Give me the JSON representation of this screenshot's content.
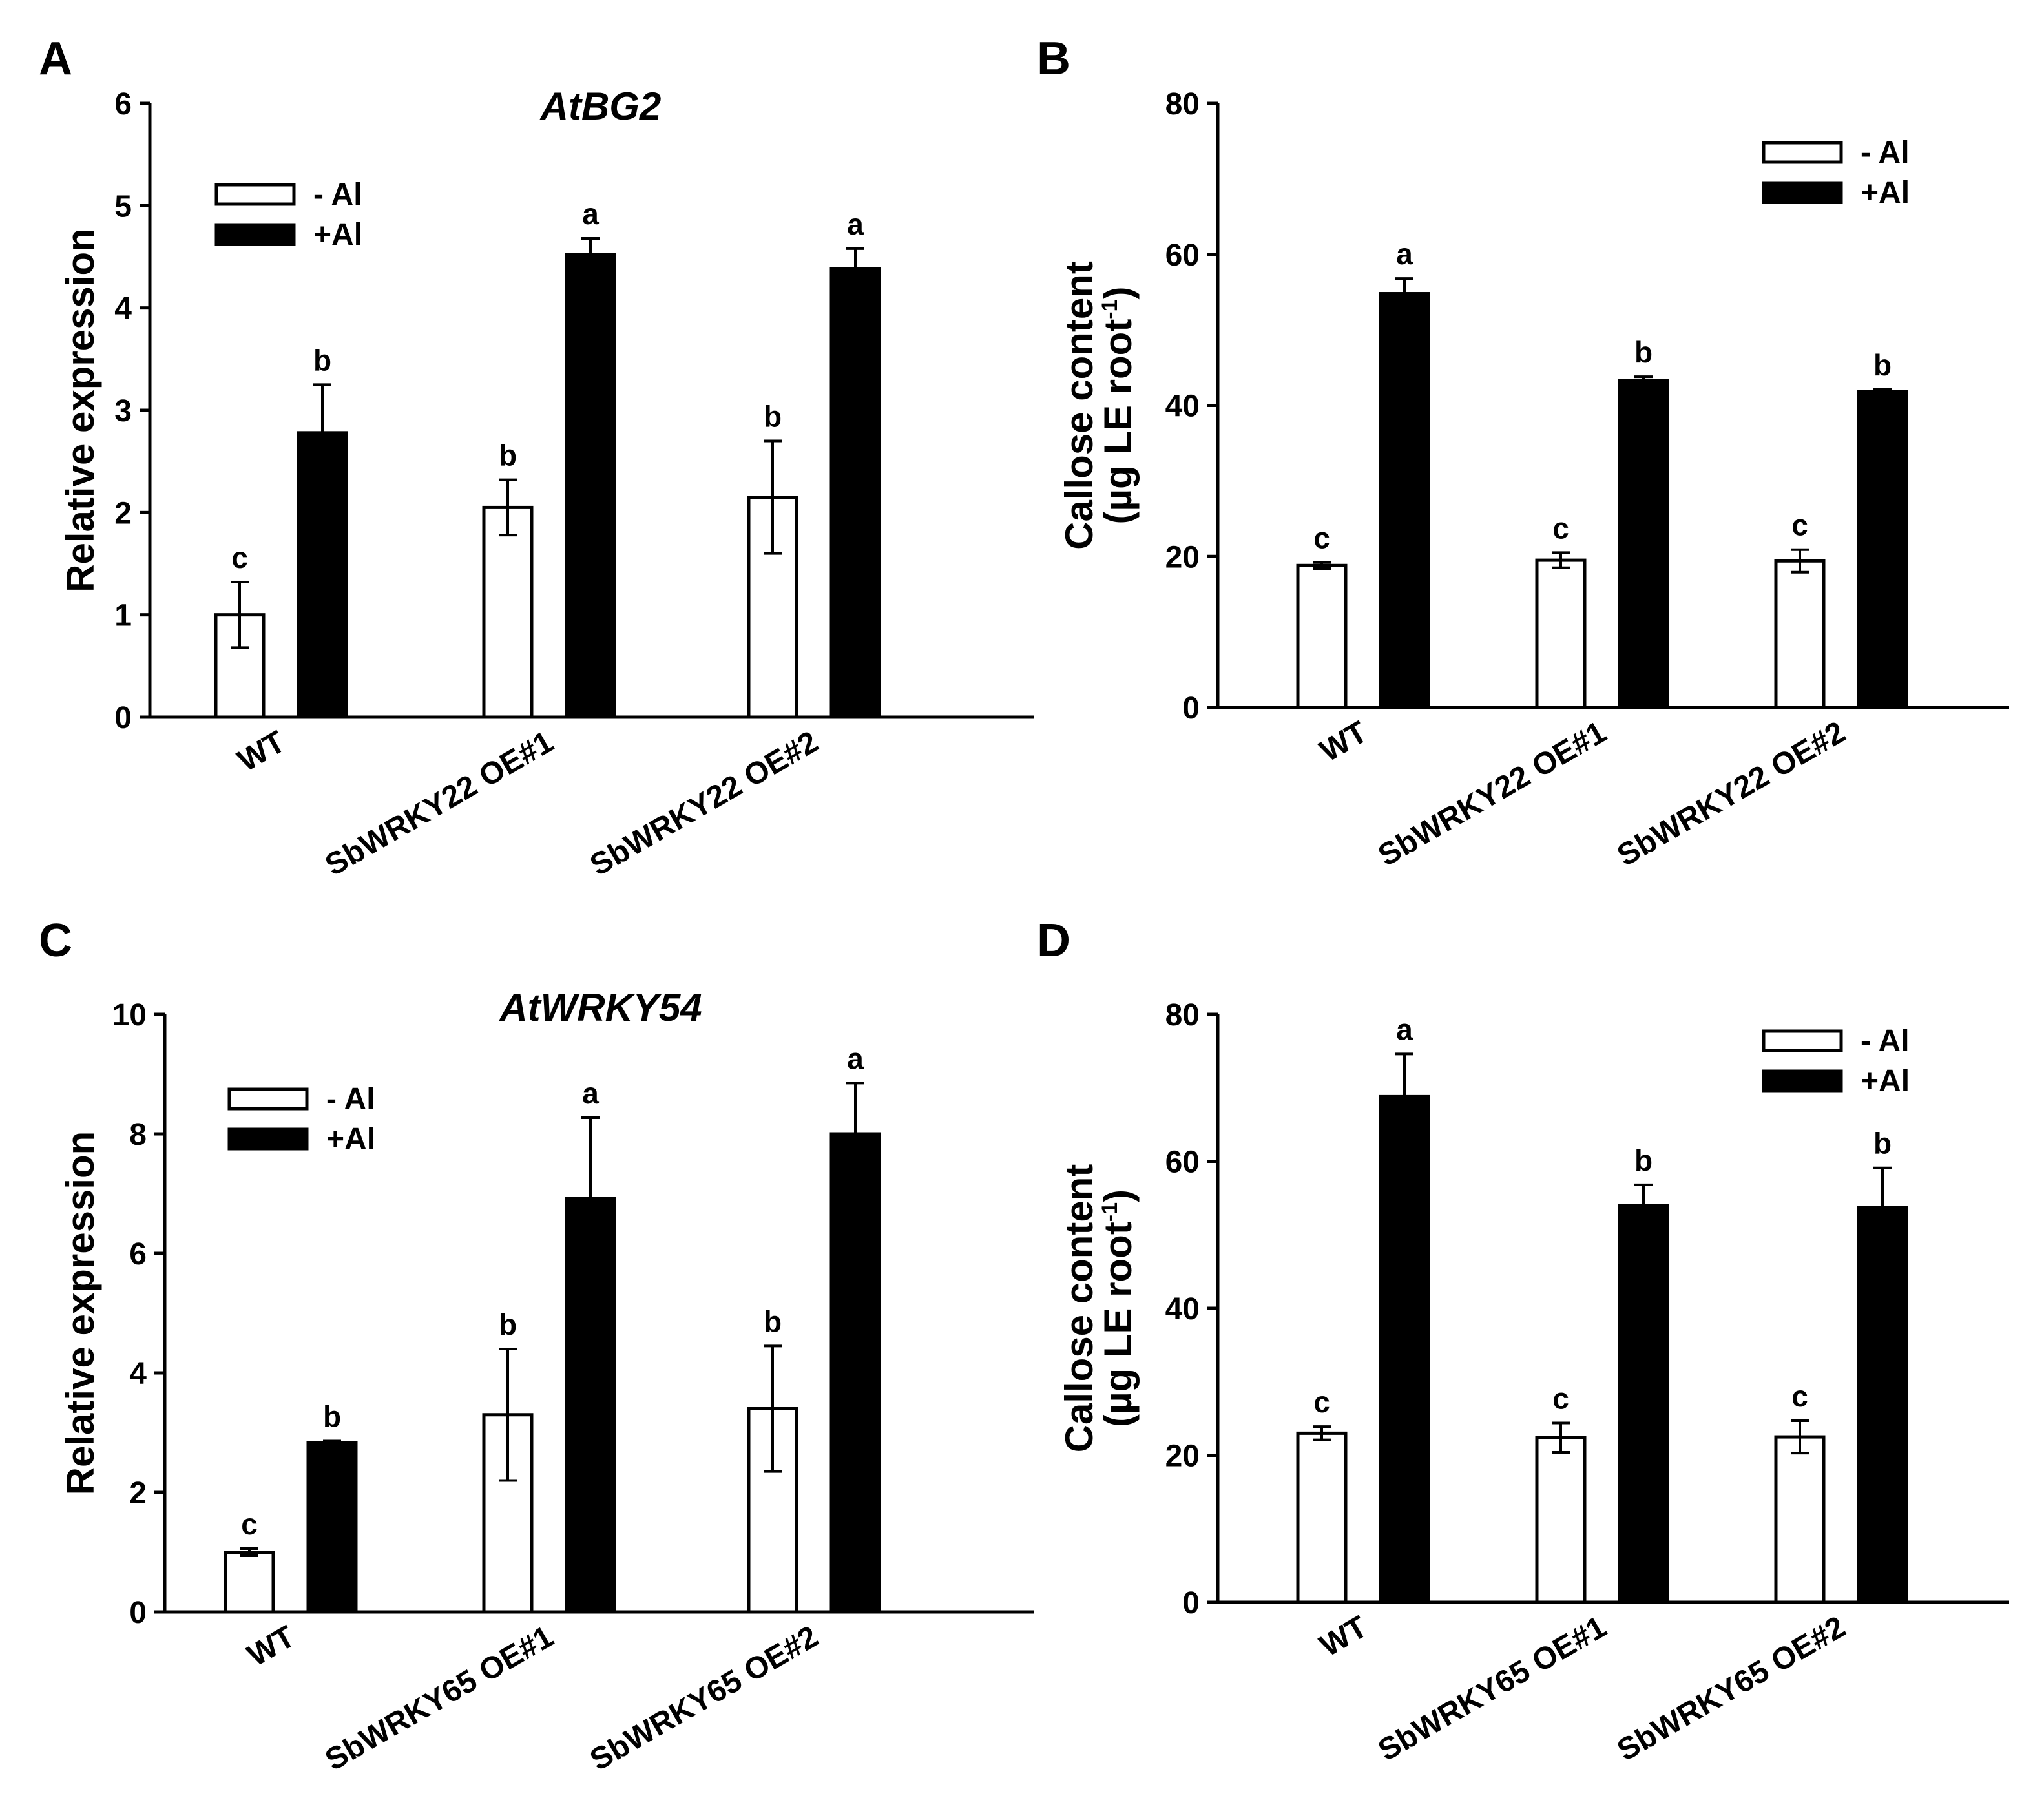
{
  "legend": {
    "minus_al": "- Al",
    "plus_al": "+Al"
  },
  "colors": {
    "minus_al_fill": "#ffffff",
    "plus_al_fill": "#000000",
    "stroke": "#000000"
  },
  "chart_data": [
    {
      "panel": "A",
      "type": "bar",
      "title": "AtBG2",
      "ylabel": "Relative expression",
      "ylabel_lines": [
        "Relative expression"
      ],
      "xlabel": "",
      "ylim": [
        0,
        6
      ],
      "yticks": [
        0,
        1,
        2,
        3,
        4,
        5,
        6
      ],
      "categories": [
        "WT",
        "SbWRKY22 OE#1",
        "SbWRKY22 OE#2"
      ],
      "legend_position": "top-left",
      "series": [
        {
          "name": "- Al",
          "values": [
            1.0,
            2.05,
            2.15
          ],
          "errors": [
            0.32,
            0.27,
            0.55
          ],
          "letters": [
            "c",
            "b",
            "b"
          ]
        },
        {
          "name": "+Al",
          "values": [
            2.78,
            4.52,
            4.38
          ],
          "errors": [
            0.47,
            0.16,
            0.2
          ],
          "letters": [
            "b",
            "a",
            "a"
          ]
        }
      ]
    },
    {
      "panel": "B",
      "type": "bar",
      "title": "",
      "ylabel": "Callose content (µg LE root-1)",
      "ylabel_lines": [
        "Callose content",
        "(µg LE root",
        "-1",
        ")"
      ],
      "xlabel": "",
      "ylim": [
        0,
        80
      ],
      "yticks": [
        0,
        20,
        40,
        60,
        80
      ],
      "categories": [
        "WT",
        "SbWRKY22 OE#1",
        "SbWRKY22 OE#2"
      ],
      "legend_position": "top-right",
      "series": [
        {
          "name": "- Al",
          "values": [
            18.8,
            19.5,
            19.4
          ],
          "errors": [
            0.4,
            1.0,
            1.5
          ],
          "letters": [
            "c",
            "c",
            "c"
          ]
        },
        {
          "name": "+Al",
          "values": [
            54.8,
            43.3,
            41.8
          ],
          "errors": [
            2.0,
            0.5,
            0.3
          ],
          "letters": [
            "a",
            "b",
            "b"
          ]
        }
      ]
    },
    {
      "panel": "C",
      "type": "bar",
      "title": "AtWRKY54",
      "ylabel": "Relative expression",
      "ylabel_lines": [
        "Relative expression"
      ],
      "xlabel": "",
      "ylim": [
        0,
        10
      ],
      "yticks": [
        0,
        2,
        4,
        6,
        8,
        10
      ],
      "categories": [
        "WT",
        "SbWRKY65 OE#1",
        "SbWRKY65 OE#2"
      ],
      "legend_position": "top-left",
      "series": [
        {
          "name": "- Al",
          "values": [
            1.0,
            3.3,
            3.4
          ],
          "errors": [
            0.06,
            1.1,
            1.05
          ],
          "letters": [
            "c",
            "b",
            "b"
          ]
        },
        {
          "name": "+Al",
          "values": [
            2.83,
            6.92,
            8.0
          ],
          "errors": [
            0.03,
            1.35,
            0.85
          ],
          "letters": [
            "b",
            "a",
            "a"
          ]
        }
      ]
    },
    {
      "panel": "D",
      "type": "bar",
      "title": "",
      "ylabel": "Callose content (µg LE root-1)",
      "ylabel_lines": [
        "Callose content",
        "(µg LE root",
        "-1",
        ")"
      ],
      "xlabel": "",
      "ylim": [
        0,
        80
      ],
      "yticks": [
        0,
        20,
        40,
        60,
        80
      ],
      "categories": [
        "WT",
        "SbWRKY65 OE#1",
        "SbWRKY65 OE#2"
      ],
      "legend_position": "top-right",
      "series": [
        {
          "name": "- Al",
          "values": [
            23.0,
            22.4,
            22.5
          ],
          "errors": [
            0.9,
            2.0,
            2.2
          ],
          "letters": [
            "c",
            "c",
            "c"
          ]
        },
        {
          "name": "+Al",
          "values": [
            68.8,
            54.0,
            53.7
          ],
          "errors": [
            5.8,
            2.8,
            5.4
          ],
          "letters": [
            "a",
            "b",
            "b"
          ]
        }
      ]
    }
  ]
}
